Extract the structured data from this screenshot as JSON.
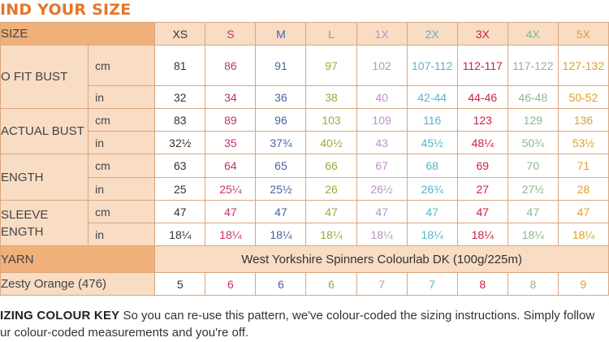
{
  "title": "IND YOUR SIZE",
  "colors": {
    "border": "#d9a780",
    "header_bg": "#f0b07a",
    "section_bg": "#f8dcc4",
    "title": "#e8742a",
    "XS": "#333333",
    "S": "#c8306a",
    "M": "#4a62a8",
    "L": "#9aaa3a",
    "1X": "#c090c8",
    "2X": "#58b4c8",
    "3X": "#d02040",
    "4X": "#8ab890",
    "5X": "#e0a028"
  },
  "table": {
    "size_label": "SIZE",
    "sizes": [
      "XS",
      "S",
      "M",
      "L",
      "1X",
      "2X",
      "3X",
      "4X",
      "5X"
    ],
    "rows": [
      {
        "group": "O FIT BUST",
        "unit": "cm",
        "values": [
          "81",
          "86",
          "91",
          "97",
          "102",
          "107-112",
          "112-117",
          "117-122",
          "127-132"
        ]
      },
      {
        "group": "",
        "unit": "in",
        "values": [
          "32",
          "34",
          "36",
          "38",
          "40",
          "42-44",
          "44-46",
          "46-48",
          "50-52"
        ]
      },
      {
        "group": "ACTUAL BUST",
        "unit": "cm",
        "values": [
          "83",
          "89",
          "96",
          "103",
          "109",
          "116",
          "123",
          "129",
          "136"
        ]
      },
      {
        "group": "",
        "unit": "in",
        "values": [
          "32½",
          "35",
          "37¾",
          "40½",
          "43",
          "45½",
          "48¼",
          "50¾",
          "53½"
        ]
      },
      {
        "group": "ENGTH",
        "unit": "cm",
        "values": [
          "63",
          "64",
          "65",
          "66",
          "67",
          "68",
          "69",
          "70",
          "71"
        ]
      },
      {
        "group": "",
        "unit": "in",
        "values": [
          "25",
          "25¼",
          "25½",
          "26",
          "26½",
          "26¾",
          "27",
          "27½",
          "28"
        ]
      },
      {
        "group": "SLEEVE\nENGTH",
        "unit": "cm",
        "values": [
          "47",
          "47",
          "47",
          "47",
          "47",
          "47",
          "47",
          "47",
          "47"
        ]
      },
      {
        "group": "",
        "unit": "in",
        "values": [
          "18¼",
          "18¼",
          "18¼",
          "18¼",
          "18¼",
          "18¼",
          "18¼",
          "18¼",
          "18¼"
        ]
      }
    ],
    "groups": {
      "bust": "O FIT BUST",
      "actual": "ACTUAL BUST",
      "length": "ENGTH",
      "sleeve_1": "SLEEVE",
      "sleeve_2": "ENGTH"
    },
    "yarn_label": "YARN",
    "yarn_value": "West Yorkshire Spinners Colourlab DK (100g/225m)",
    "colour_label": "Zesty Orange (476)",
    "colour_values": [
      "5",
      "6",
      "6",
      "6",
      "7",
      "7",
      "8",
      "8",
      "9"
    ]
  },
  "key": {
    "heading": "IZING COLOUR KEY",
    "line1": " So you can re-use this pattern, we've colour-coded the sizing instructions. Simply follow",
    "line2": "ur colour-coded measurements and you're off."
  }
}
